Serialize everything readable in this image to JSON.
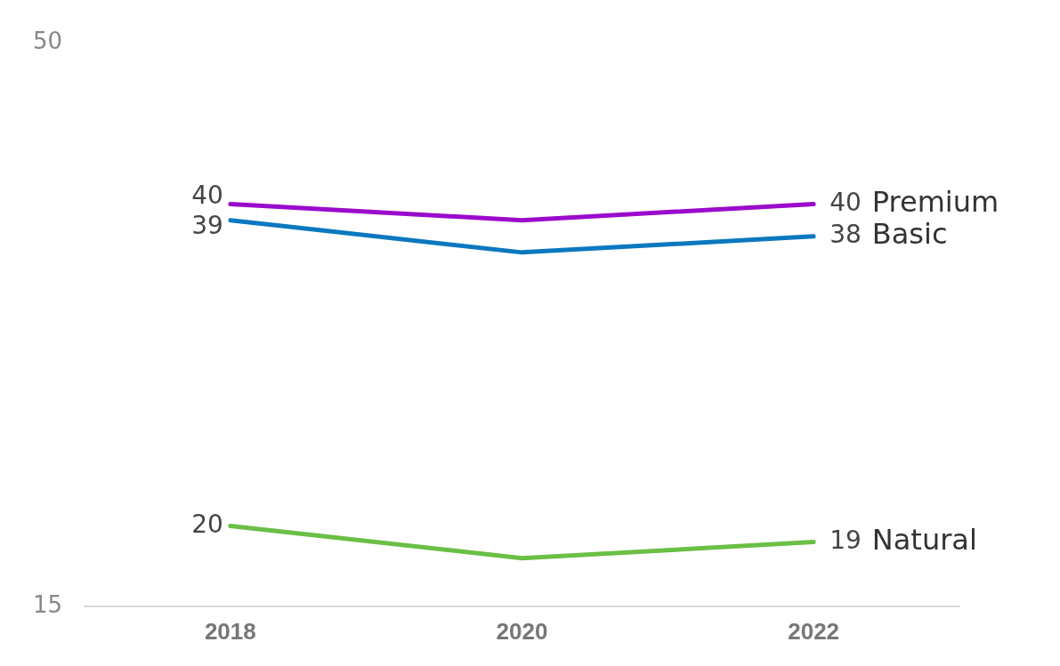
{
  "chart_data": {
    "type": "line",
    "categories": [
      "2018",
      "2020",
      "2022"
    ],
    "series": [
      {
        "name": "Premium",
        "color": "#9b0bcc",
        "values": [
          40,
          39,
          40
        ],
        "value_labels": [
          "40",
          null,
          "40"
        ]
      },
      {
        "name": "Basic",
        "color": "#0a78c0",
        "values": [
          39,
          37,
          38
        ],
        "value_labels": [
          "39",
          null,
          "38"
        ]
      },
      {
        "name": "Natural",
        "color": "#6abf45",
        "values": [
          20,
          18,
          19
        ],
        "value_labels": [
          "20",
          null,
          "19"
        ]
      }
    ],
    "ylim": [
      15,
      50
    ],
    "yticks": [
      15,
      50
    ],
    "grid": false,
    "legend": false,
    "marker": "none",
    "line_style": "solid"
  }
}
